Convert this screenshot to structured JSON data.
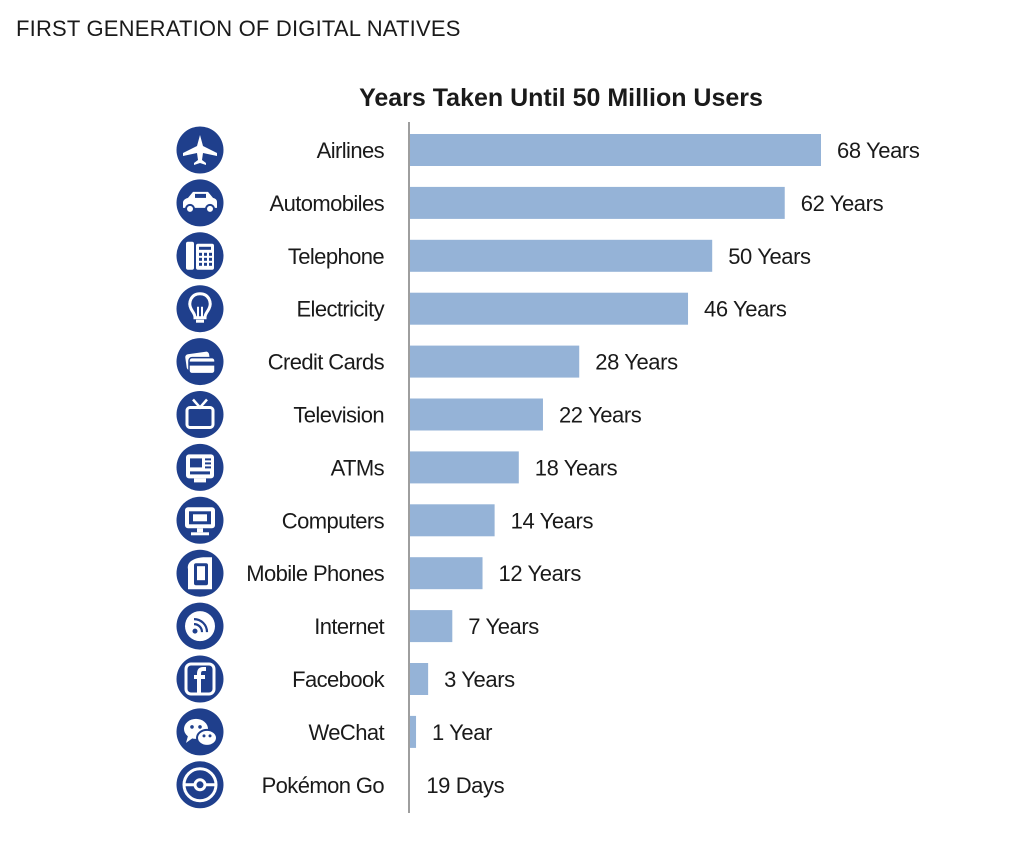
{
  "page": {
    "heading": "FIRST GENERATION OF DIGITAL NATIVES"
  },
  "colors": {
    "bar": "#95b3d7",
    "icon_circle": "#1f3f8c",
    "axis": "#7f7f7f"
  },
  "chart_data": {
    "type": "bar",
    "orientation": "horizontal",
    "title": "Years Taken Until 50 Million Users",
    "xlabel": "",
    "ylabel": "",
    "xlim": [
      0,
      68
    ],
    "grid": false,
    "legend": "none",
    "categories": [
      "Airlines",
      "Automobiles",
      "Telephone",
      "Electricity",
      "Credit Cards",
      "Television",
      "ATMs",
      "Computers",
      "Mobile Phones",
      "Internet",
      "Facebook",
      "WeChat",
      "Pokémon Go"
    ],
    "values": [
      68,
      62,
      50,
      46,
      28,
      22,
      18,
      14,
      12,
      7,
      3,
      1,
      0.052
    ],
    "value_labels": [
      "68 Years",
      "62 Years",
      "50 Years",
      "46 Years",
      "28 Years",
      "22 Years",
      "18 Years",
      "14 Years",
      "12 Years",
      "7 Years",
      "3 Years",
      "1 Year",
      "19 Days"
    ],
    "icons": [
      "airplane-icon",
      "car-icon",
      "telephone-icon",
      "lightbulb-icon",
      "credit-card-icon",
      "television-icon",
      "atm-icon",
      "computer-icon",
      "mobile-phone-icon",
      "internet-icon",
      "facebook-icon",
      "wechat-icon",
      "pokeball-icon"
    ]
  }
}
